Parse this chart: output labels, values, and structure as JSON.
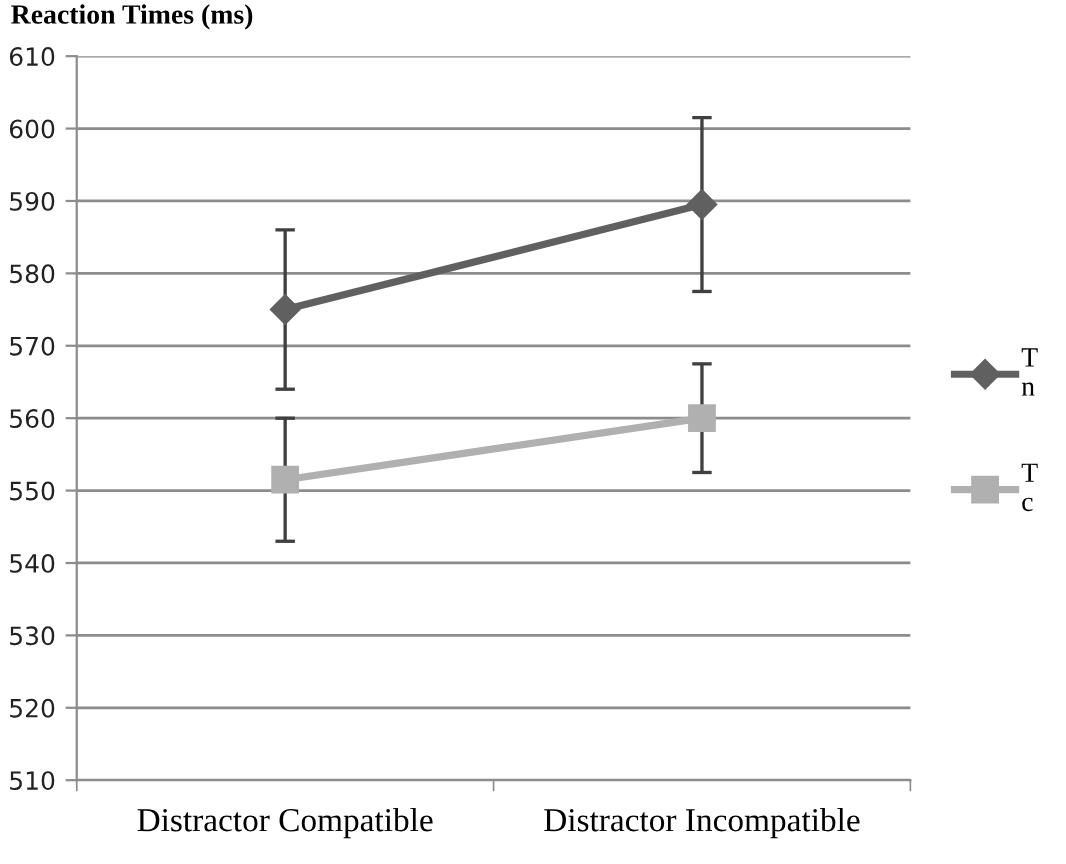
{
  "chart_data": {
    "type": "line",
    "title": "Reaction Times (ms)",
    "categories": [
      "Distractor Compatible",
      "Distractor Incompatible"
    ],
    "series": [
      {
        "name": "T\nn",
        "color": "#606060",
        "marker": "diamond",
        "values": [
          575,
          589.5
        ],
        "errors": [
          11,
          12
        ]
      },
      {
        "name": "T\nc",
        "color": "#b0b0b0",
        "marker": "square",
        "values": [
          551.5,
          560
        ],
        "errors": [
          8.5,
          7.5
        ]
      }
    ],
    "ylim": [
      510,
      610
    ],
    "yticks": [
      510,
      520,
      530,
      540,
      550,
      560,
      570,
      580,
      590,
      600,
      610
    ],
    "grid": "y",
    "legend": "right",
    "line_style": "solid"
  }
}
